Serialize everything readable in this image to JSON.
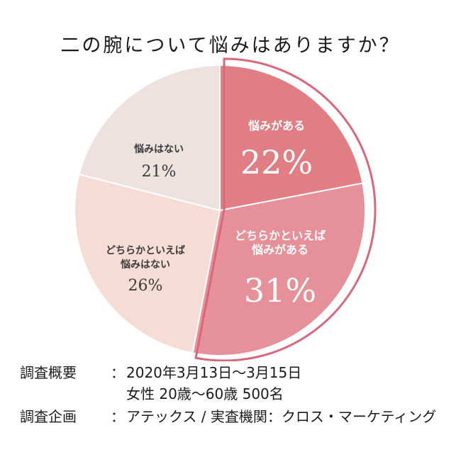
{
  "title": "二の腕について悩みはありますか？",
  "chart_data": {
    "type": "pie",
    "title": "二の腕について悩みはありますか？",
    "slices": [
      {
        "label_lines": [
          "悩みがある"
        ],
        "value": 22,
        "value_label": "22%",
        "color": "#e07e84",
        "highlighted": true
      },
      {
        "label_lines": [
          "どちらかといえば",
          "悩みがある"
        ],
        "value": 31,
        "value_label": "31%",
        "color": "#e6919a",
        "highlighted": true
      },
      {
        "label_lines": [
          "どちらかといえば",
          "悩みはない"
        ],
        "value": 26,
        "value_label": "26%",
        "color": "#f5ddd6",
        "highlighted": false
      },
      {
        "label_lines": [
          "悩みはない"
        ],
        "value": 21,
        "value_label": "21%",
        "color": "#ede2e0",
        "highlighted": false
      }
    ],
    "highlight_outline_color": "#d9667a"
  },
  "survey": {
    "overview_label": "調査概要",
    "overview_line1": "2020年3月13日～3月15日",
    "overview_line2": "女性 20歳～60歳 500名",
    "planning_label": "調査企画",
    "planning_value": "アテックス / 実査機関：クロス・マーケティング",
    "colon": "："
  }
}
